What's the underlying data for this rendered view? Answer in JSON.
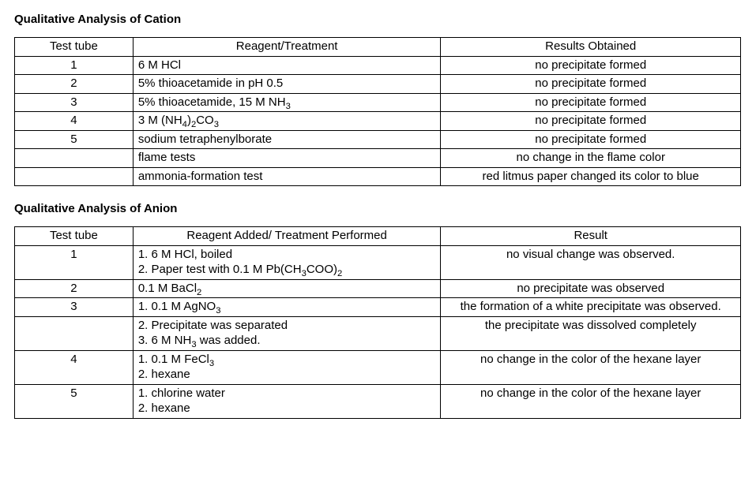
{
  "cation": {
    "title": "Qualitative Analysis of Cation",
    "headers": {
      "col1": "Test tube",
      "col2": "Reagent/Treatment",
      "col3": "Results Obtained"
    },
    "rows": [
      {
        "tube": "1",
        "reagent": "6 M HCl",
        "result": "no precipitate formed"
      },
      {
        "tube": "2",
        "reagent": "5% thioacetamide in pH 0.5",
        "result": "no precipitate formed"
      },
      {
        "tube": "3",
        "reagent": "5% thioacetamide, 15 M NH3",
        "result": "no precipitate formed"
      },
      {
        "tube": "4",
        "reagent": "3 M (NH4)2CO3",
        "result": "no precipitate formed"
      },
      {
        "tube": "5",
        "reagent": "sodium tetraphenylborate",
        "result": "no precipitate formed"
      },
      {
        "tube": "",
        "reagent": "flame tests",
        "result": "no change in the flame color"
      },
      {
        "tube": "",
        "reagent": "ammonia-formation test",
        "result": "red litmus paper changed its color to blue"
      }
    ]
  },
  "anion": {
    "title": "Qualitative Analysis of Anion",
    "headers": {
      "col1": "Test tube",
      "col2": "Reagent Added/ Treatment Performed",
      "col3": "Result"
    },
    "rows": [
      {
        "tube": "1",
        "reagent": "1. 6 M HCl, boiled\n2. Paper test with 0.1 M Pb(CH3COO)2",
        "result": "no visual change was observed."
      },
      {
        "tube": "2",
        "reagent": "0.1 M BaCl2",
        "result": "no precipitate was observed"
      },
      {
        "tube": "3",
        "reagent": "1. 0.1 M AgNO3",
        "result": "the formation of a white precipitate was observed."
      },
      {
        "tube": "",
        "reagent": "2. Precipitate was separated\n3. 6 M NH3 was added.",
        "result": "the precipitate was dissolved completely"
      },
      {
        "tube": "4",
        "reagent": "1. 0.1 M FeCl3\n2. hexane",
        "result": "no change in the color of the hexane layer"
      },
      {
        "tube": "5",
        "reagent": "1. chlorine water\n2. hexane",
        "result": "no change in the color of the hexane layer"
      }
    ]
  }
}
